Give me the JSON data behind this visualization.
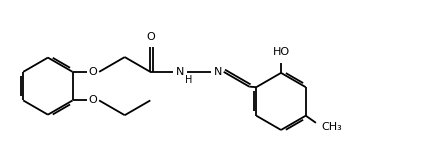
{
  "bg_color": "#ffffff",
  "line_color": "#000000",
  "line_width": 1.3,
  "font_size": 8.0,
  "fig_width": 4.23,
  "fig_height": 1.58,
  "dpi": 100,
  "xlim": [
    0.05,
    4.2
  ],
  "ylim": [
    0.05,
    1.45
  ]
}
